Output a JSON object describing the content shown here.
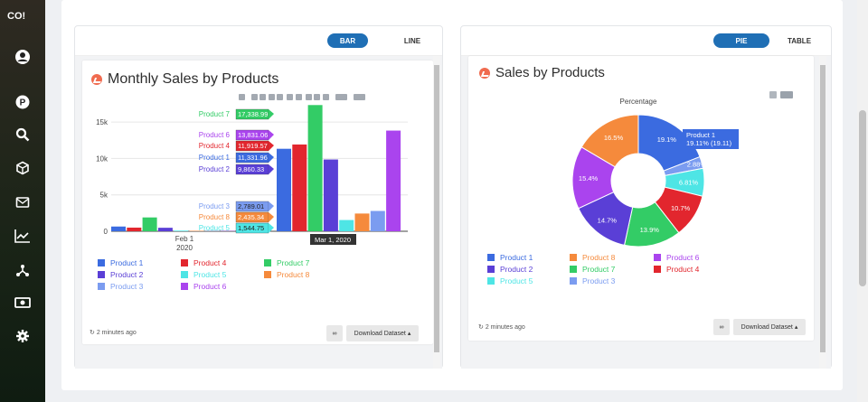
{
  "sidebar": {
    "brand": "CO!",
    "icons": [
      "user-circle-icon",
      "p-circle-icon",
      "search-icon",
      "cube-icon",
      "mail-icon",
      "trend-icon",
      "network-icon",
      "cash-icon",
      "gear-icon"
    ]
  },
  "left_panel": {
    "toggle": {
      "bar": "BAR",
      "line": "LINE"
    },
    "title": "Monthly Sales by Products",
    "updated": "2 minutes ago",
    "download_label": "Download Dataset"
  },
  "right_panel": {
    "toggle": {
      "pie": "PIE",
      "table": "TABLE"
    },
    "title": "Sales by Products",
    "updated": "2 minutes ago",
    "download_label": "Download Dataset"
  },
  "chart_data": [
    {
      "type": "bar",
      "title": "Monthly Sales by Products",
      "x": [
        "Feb 1, 2020",
        "Mar 1, 2020"
      ],
      "x_ticks": [
        "Feb 1",
        "2020"
      ],
      "ylim": [
        0,
        17500
      ],
      "y_ticks": [
        "0",
        "5k",
        "10k",
        "15k"
      ],
      "series": [
        {
          "name": "Product 1",
          "color": "#3b6be0",
          "values": [
            650,
            11331.96
          ]
        },
        {
          "name": "Product 4",
          "color": "#e2262e",
          "values": [
            500,
            11919.57
          ]
        },
        {
          "name": "Product 7",
          "color": "#33cc66",
          "values": [
            1900,
            17338.99
          ]
        },
        {
          "name": "Product 2",
          "color": "#5a3fd6",
          "values": [
            480,
            9860.33
          ]
        },
        {
          "name": "Product 5",
          "color": "#4ee5e5",
          "values": [
            90,
            1544.75
          ]
        },
        {
          "name": "Product 8",
          "color": "#f58a3c",
          "values": [
            60,
            2435.34
          ]
        },
        {
          "name": "Product 3",
          "color": "#7b9cf0",
          "values": [
            40,
            2789.01
          ]
        },
        {
          "name": "Product 6",
          "color": "#aa44ee",
          "values": [
            40,
            13831.06
          ]
        }
      ],
      "hover": {
        "date": "Mar 1, 2020",
        "labels": [
          {
            "name": "Product 7",
            "value": "17,338.99",
            "color": "#33cc66"
          },
          {
            "name": "Product 6",
            "value": "13,831.06",
            "color": "#aa44ee"
          },
          {
            "name": "Product 4",
            "value": "11,919.57",
            "color": "#e2262e"
          },
          {
            "name": "Product 1",
            "value": "11,331.96",
            "color": "#3b6be0"
          },
          {
            "name": "Product 2",
            "value": "9,860.33",
            "color": "#5a3fd6"
          },
          {
            "name": "Product 3",
            "value": "2,789.01",
            "color": "#7b9cf0"
          },
          {
            "name": "Product 8",
            "value": "2,435.34",
            "color": "#f58a3c"
          },
          {
            "name": "Product 5",
            "value": "1,544.75",
            "color": "#4ee5e5"
          }
        ]
      },
      "legend": [
        {
          "name": "Product 1",
          "color": "#3b6be0"
        },
        {
          "name": "Product 4",
          "color": "#e2262e"
        },
        {
          "name": "Product 7",
          "color": "#33cc66"
        },
        {
          "name": "Product 2",
          "color": "#5a3fd6"
        },
        {
          "name": "Product 5",
          "color": "#4ee5e5"
        },
        {
          "name": "Product 8",
          "color": "#f58a3c"
        },
        {
          "name": "Product 3",
          "color": "#7b9cf0"
        },
        {
          "name": "Product 6",
          "color": "#aa44ee"
        }
      ]
    },
    {
      "type": "pie",
      "title": "Sales by Products",
      "subtitle": "Percentage",
      "slices": [
        {
          "name": "Product 1",
          "value": 19.1,
          "label": "19.1%",
          "color": "#3b6be0"
        },
        {
          "name": "Product 3",
          "value": 2.88,
          "label": "2.88%",
          "color": "#7b9cf0"
        },
        {
          "name": "Product 5",
          "value": 6.81,
          "label": "6.81%",
          "color": "#4ee5e5"
        },
        {
          "name": "Product 4",
          "value": 10.7,
          "label": "10.7%",
          "color": "#e2262e"
        },
        {
          "name": "Product 7",
          "value": 13.9,
          "label": "13.9%",
          "color": "#33cc66"
        },
        {
          "name": "Product 2",
          "value": 14.7,
          "label": "14.7%",
          "color": "#5a3fd6"
        },
        {
          "name": "Product 6",
          "value": 15.4,
          "label": "15.4%",
          "color": "#aa44ee"
        },
        {
          "name": "Product 8",
          "value": 16.5,
          "label": "16.5%",
          "color": "#f58a3c"
        }
      ],
      "hover": {
        "line1": "Product 1",
        "line2": "19.11% (19.11)"
      },
      "legend": [
        {
          "name": "Product 1",
          "color": "#3b6be0"
        },
        {
          "name": "Product 8",
          "color": "#f58a3c"
        },
        {
          "name": "Product 6",
          "color": "#aa44ee"
        },
        {
          "name": "Product 2",
          "color": "#5a3fd6"
        },
        {
          "name": "Product 7",
          "color": "#33cc66"
        },
        {
          "name": "Product 4",
          "color": "#e2262e"
        },
        {
          "name": "Product 5",
          "color": "#4ee5e5"
        },
        {
          "name": "Product 3",
          "color": "#7b9cf0"
        }
      ]
    }
  ]
}
